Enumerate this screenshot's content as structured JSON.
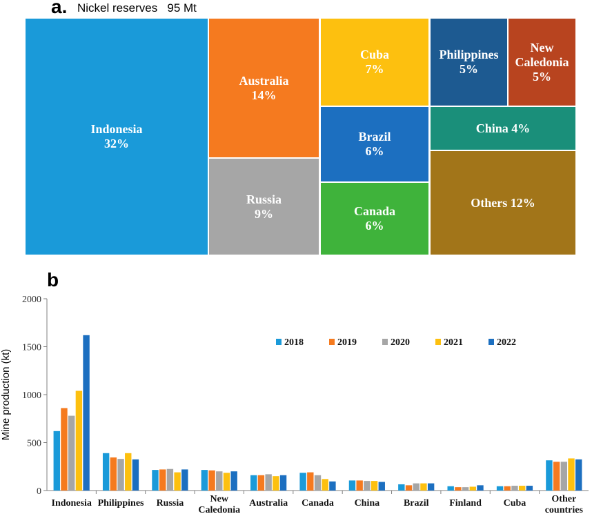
{
  "panel_a": {
    "letter": "a.",
    "title": "Nickel reserves   95 Mt",
    "tiles": [
      {
        "key": "indonesia",
        "label": "Indonesia",
        "pct": "32%",
        "color": "#1a9ad9"
      },
      {
        "key": "australia",
        "label": "Australia",
        "pct": "14%",
        "color": "#f57a1f"
      },
      {
        "key": "russia",
        "label": "Russia",
        "pct": "9%",
        "color": "#a6a6a6"
      },
      {
        "key": "cuba",
        "label": "Cuba",
        "pct": "7%",
        "color": "#fdc00f"
      },
      {
        "key": "brazil",
        "label": "Brazil",
        "pct": "6%",
        "color": "#1c6fc0"
      },
      {
        "key": "canada",
        "label": "Canada",
        "pct": "6%",
        "color": "#3fb33b"
      },
      {
        "key": "philippines",
        "label": "Philippines",
        "pct": "5%",
        "color": "#1d5a91"
      },
      {
        "key": "new-caledonia",
        "label": "New Caledonia",
        "pct": "5%",
        "color": "#b8441f"
      },
      {
        "key": "china",
        "label": "China",
        "pct": "4%",
        "color": "#1a8f7a"
      },
      {
        "key": "others",
        "label": "Others",
        "pct": "12%",
        "color": "#a27519"
      }
    ]
  },
  "panel_b": {
    "letter": "b"
  },
  "chart_data": [
    {
      "type": "treemap",
      "title": "Nickel reserves   95 Mt",
      "categories": [
        "Indonesia",
        "Australia",
        "Russia",
        "Cuba",
        "Brazil",
        "Canada",
        "Philippines",
        "New Caledonia",
        "China",
        "Others"
      ],
      "values": [
        32,
        14,
        9,
        7,
        6,
        6,
        5,
        5,
        4,
        12
      ],
      "unit": "%"
    },
    {
      "type": "bar",
      "ylabel": "Mine production (kt)",
      "xlabel": "",
      "ylim": [
        0,
        2000
      ],
      "yticks": [
        "0",
        "500",
        "1000",
        "1500",
        "2000"
      ],
      "ytick_values": [
        0,
        500,
        1000,
        1500,
        2000
      ],
      "legend_position": "top-right",
      "categories": [
        "Indonesia",
        "Philippines",
        "Russia",
        "New Caledonia",
        "Australia",
        "Canada",
        "China",
        "Brazil",
        "Finland",
        "Cuba",
        "Other countries"
      ],
      "series": [
        {
          "name": "2018",
          "color": "#1a9ad9",
          "values": [
            620,
            390,
            215,
            215,
            160,
            185,
            105,
            65,
            45,
            45,
            315
          ]
        },
        {
          "name": "2019",
          "color": "#f57a1f",
          "values": [
            860,
            345,
            220,
            210,
            160,
            190,
            105,
            55,
            35,
            45,
            300
          ]
        },
        {
          "name": "2020",
          "color": "#a6a6a6",
          "values": [
            780,
            330,
            225,
            200,
            170,
            160,
            100,
            75,
            35,
            50,
            300
          ]
        },
        {
          "name": "2021",
          "color": "#fdc00f",
          "values": [
            1040,
            390,
            190,
            185,
            150,
            120,
            100,
            75,
            40,
            50,
            335
          ]
        },
        {
          "name": "2022",
          "color": "#1c6fc0",
          "values": [
            1620,
            325,
            220,
            200,
            160,
            95,
            90,
            75,
            55,
            50,
            325
          ]
        }
      ]
    }
  ]
}
